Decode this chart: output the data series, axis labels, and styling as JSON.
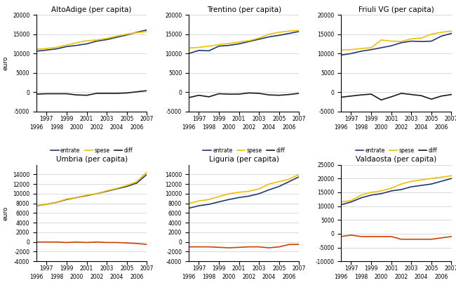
{
  "years": [
    1996,
    1997,
    1998,
    1999,
    2000,
    2001,
    2002,
    2003,
    2004,
    2005,
    2006,
    2007
  ],
  "subplots": [
    {
      "title": "AltoAdige (per capita)",
      "entrate": [
        10600,
        10900,
        11200,
        11800,
        12100,
        12500,
        13200,
        13600,
        14200,
        14800,
        15500,
        16100
      ],
      "spese": [
        11100,
        11300,
        11600,
        12200,
        12800,
        13300,
        13500,
        13900,
        14500,
        15000,
        15400,
        15700
      ],
      "diff": [
        -500,
        -400,
        -400,
        -400,
        -700,
        -800,
        -300,
        -300,
        -300,
        -200,
        100,
        400
      ],
      "ylim": [
        -5000,
        20000
      ],
      "yticks": [
        -5000,
        0,
        5000,
        10000,
        15000,
        20000
      ],
      "diff_color": "#1a1a1a",
      "show_ylabel": true
    },
    {
      "title": "Trentino (per capita)",
      "entrate": [
        10000,
        10800,
        10700,
        11900,
        12100,
        12500,
        13100,
        13700,
        14300,
        14700,
        15200,
        15700
      ],
      "spese": [
        11400,
        11600,
        11900,
        12300,
        12600,
        13000,
        13300,
        14000,
        15000,
        15500,
        15800,
        16000
      ],
      "diff": [
        -1400,
        -800,
        -1200,
        -400,
        -500,
        -500,
        -200,
        -300,
        -700,
        -800,
        -600,
        -300
      ],
      "ylim": [
        -5000,
        20000
      ],
      "yticks": [
        -5000,
        0,
        5000,
        10000,
        15000,
        20000
      ],
      "diff_color": "#1a1a1a",
      "show_ylabel": false
    },
    {
      "title": "Friuli VG (per capita)",
      "entrate": [
        9600,
        10000,
        10600,
        11000,
        11500,
        12000,
        12800,
        13200,
        13100,
        13200,
        14500,
        15200
      ],
      "spese": [
        10900,
        11000,
        11300,
        11500,
        13500,
        13200,
        13100,
        13800,
        14000,
        15000,
        15500,
        15800
      ],
      "diff": [
        -1300,
        -1000,
        -700,
        -500,
        -2000,
        -1200,
        -300,
        -600,
        -900,
        -1800,
        -1000,
        -600
      ],
      "ylim": [
        -5000,
        20000
      ],
      "yticks": [
        -5000,
        0,
        5000,
        10000,
        15000,
        20000
      ],
      "diff_color": "#1a1a1a",
      "show_ylabel": false
    },
    {
      "title": "Umbria (per capita)",
      "entrate": [
        7500,
        7800,
        8200,
        8800,
        9200,
        9600,
        10000,
        10500,
        11000,
        11500,
        12200,
        14000
      ],
      "spese": [
        7500,
        7800,
        8200,
        8900,
        9200,
        9700,
        10000,
        10600,
        11100,
        11700,
        12500,
        14500
      ],
      "diff": [
        0,
        0,
        0,
        -100,
        0,
        -100,
        0,
        -100,
        -100,
        -200,
        -300,
        -500
      ],
      "ylim": [
        -4000,
        16000
      ],
      "yticks": [
        -4000,
        -2000,
        0,
        2000,
        4000,
        6000,
        8000,
        10000,
        12000,
        14000
      ],
      "diff_color": "#cc4400",
      "show_ylabel": true
    },
    {
      "title": "Liguria (per capita)",
      "entrate": [
        7000,
        7500,
        7800,
        8300,
        8800,
        9200,
        9500,
        10000,
        10800,
        11500,
        12500,
        13500
      ],
      "spese": [
        8000,
        8500,
        8800,
        9400,
        10000,
        10300,
        10500,
        11000,
        12000,
        12500,
        13000,
        14000
      ],
      "diff": [
        -1000,
        -1000,
        -1000,
        -1100,
        -1200,
        -1100,
        -1000,
        -1000,
        -1200,
        -1000,
        -500,
        -500
      ],
      "ylim": [
        -4000,
        16000
      ],
      "yticks": [
        -4000,
        -2000,
        0,
        2000,
        4000,
        6000,
        8000,
        10000,
        12000,
        14000
      ],
      "diff_color": "#cc4400",
      "show_ylabel": false
    },
    {
      "title": "Valdaosta (per capita)",
      "entrate": [
        10500,
        11500,
        13000,
        14000,
        14500,
        15500,
        16000,
        17000,
        17500,
        18000,
        19000,
        20000
      ],
      "spese": [
        11500,
        12000,
        14000,
        15000,
        15500,
        16500,
        18000,
        19000,
        19500,
        20000,
        20500,
        21000
      ],
      "diff": [
        -1000,
        -500,
        -1000,
        -1000,
        -1000,
        -1000,
        -2000,
        -2000,
        -2000,
        -2000,
        -1500,
        -1000
      ],
      "ylim": [
        -10000,
        25000
      ],
      "yticks": [
        -10000,
        -5000,
        0,
        5000,
        10000,
        15000,
        20000,
        25000
      ],
      "diff_color": "#cc4400",
      "show_ylabel": false
    }
  ],
  "entrate_color": "#1f3a6e",
  "spese_color": "#f0c000",
  "background_color": "#ffffff",
  "grid_color": "#cccccc",
  "xticks_odd": [
    1997,
    1999,
    2001,
    2003,
    2005,
    2007
  ],
  "xticks_even": [
    1996,
    1998,
    2000,
    2002,
    2004,
    2006
  ]
}
